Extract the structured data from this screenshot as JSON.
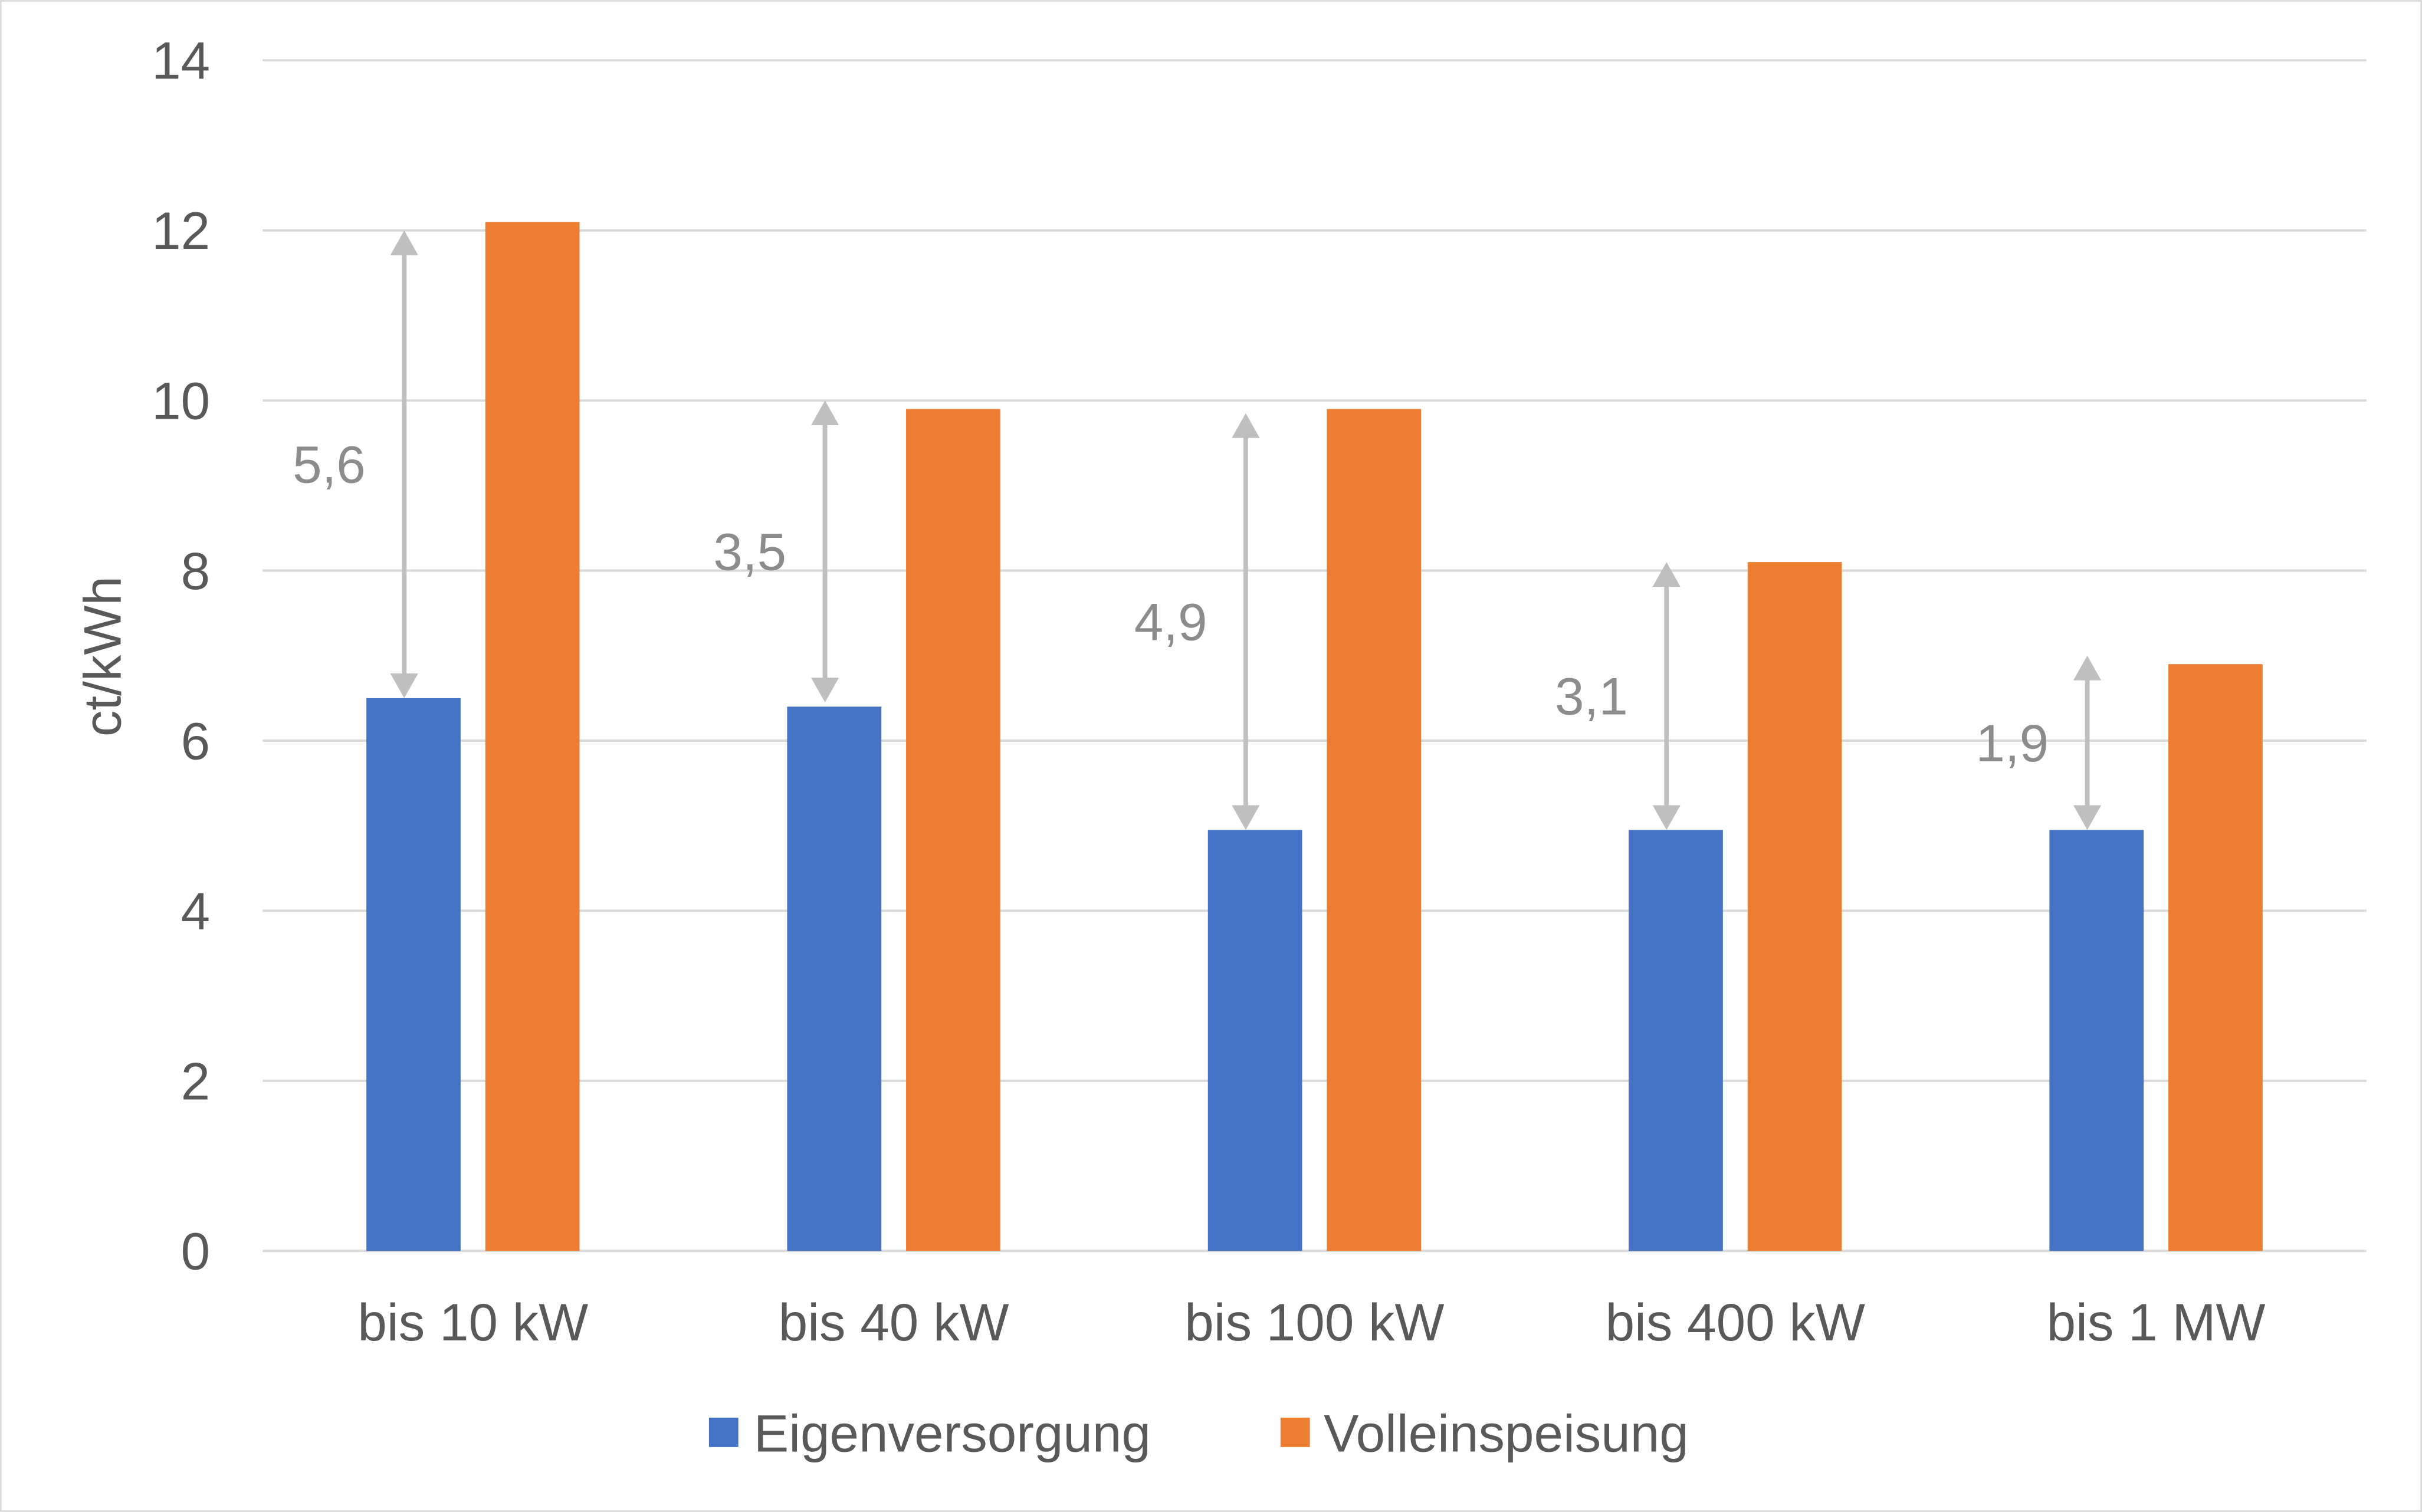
{
  "chart_data": {
    "type": "bar",
    "title": "",
    "xlabel": "",
    "ylabel": "ct/kWh",
    "ylim": [
      0,
      14
    ],
    "yticks": [
      0,
      2,
      4,
      6,
      8,
      10,
      12,
      14
    ],
    "grid": true,
    "legend_position": "bottom",
    "categories": [
      "bis 10 kW",
      "bis 40 kW",
      "bis 100 kW",
      "bis 400 kW",
      "bis 1 MW"
    ],
    "series": [
      {
        "name": "Eigenversorgung",
        "color": "#4472c4",
        "values": [
          6.5,
          6.4,
          4.95,
          4.95,
          4.95
        ]
      },
      {
        "name": "Volleinspeisung",
        "color": "#ed7d31",
        "values": [
          12.1,
          9.9,
          9.9,
          8.1,
          6.9
        ]
      }
    ],
    "annotations": {
      "color": "#bfbfbf",
      "labels": [
        "5,6",
        "3,5",
        "4,9",
        "3,1",
        "1,9"
      ],
      "arrows": [
        {
          "from": 6.5,
          "to": 12.0
        },
        {
          "from": 6.45,
          "to": 10.0
        },
        {
          "from": 4.95,
          "to": 9.85
        },
        {
          "from": 4.95,
          "to": 8.1
        },
        {
          "from": 4.95,
          "to": 7.0
        }
      ]
    }
  }
}
